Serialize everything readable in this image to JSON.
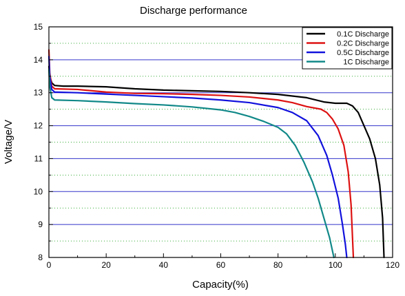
{
  "chart_data": {
    "type": "line",
    "title": "Discharge performance",
    "xlabel": "Capacity(%)",
    "ylabel": "Voltage/V",
    "xlim": [
      0,
      120
    ],
    "ylim": [
      8,
      15
    ],
    "x_ticks": [
      0,
      20,
      40,
      60,
      80,
      100,
      120
    ],
    "y_ticks": [
      8,
      9,
      10,
      11,
      12,
      13,
      14,
      15
    ],
    "grid": {
      "major_y": true,
      "minor_y": true,
      "major_color": "#3333cc",
      "minor_color": "#33aa33"
    },
    "legend_position": "top-right",
    "series": [
      {
        "name": "0.1C Discharge",
        "color": "#000000",
        "points": [
          [
            0,
            13.8
          ],
          [
            0.3,
            13.5
          ],
          [
            1,
            13.3
          ],
          [
            2,
            13.22
          ],
          [
            5,
            13.2
          ],
          [
            10,
            13.2
          ],
          [
            20,
            13.18
          ],
          [
            30,
            13.12
          ],
          [
            40,
            13.08
          ],
          [
            50,
            13.06
          ],
          [
            60,
            13.04
          ],
          [
            70,
            13.0
          ],
          [
            80,
            12.95
          ],
          [
            90,
            12.85
          ],
          [
            96,
            12.72
          ],
          [
            100,
            12.68
          ],
          [
            104,
            12.68
          ],
          [
            106,
            12.6
          ],
          [
            108,
            12.4
          ],
          [
            110,
            12.0
          ],
          [
            112,
            11.6
          ],
          [
            114,
            11.0
          ],
          [
            115.5,
            10.2
          ],
          [
            116.5,
            9.2
          ],
          [
            117,
            8.0
          ]
        ]
      },
      {
        "name": "0.2C Discharge",
        "color": "#dd1111",
        "points": [
          [
            0,
            14.3
          ],
          [
            0.3,
            13.6
          ],
          [
            1,
            13.2
          ],
          [
            2,
            13.12
          ],
          [
            10,
            13.1
          ],
          [
            20,
            13.02
          ],
          [
            30,
            12.98
          ],
          [
            40,
            12.97
          ],
          [
            50,
            12.95
          ],
          [
            60,
            12.92
          ],
          [
            70,
            12.87
          ],
          [
            80,
            12.78
          ],
          [
            85,
            12.7
          ],
          [
            90,
            12.58
          ],
          [
            95,
            12.5
          ],
          [
            97,
            12.4
          ],
          [
            99,
            12.2
          ],
          [
            101,
            11.9
          ],
          [
            103,
            11.4
          ],
          [
            104.5,
            10.6
          ],
          [
            105.5,
            9.6
          ],
          [
            106,
            8.6
          ],
          [
            106.3,
            8.0
          ]
        ]
      },
      {
        "name": "0.5C Discharge",
        "color": "#1111dd",
        "points": [
          [
            0,
            14.1
          ],
          [
            0.3,
            13.5
          ],
          [
            1,
            13.1
          ],
          [
            2,
            13.02
          ],
          [
            10,
            13.0
          ],
          [
            20,
            12.96
          ],
          [
            30,
            12.92
          ],
          [
            40,
            12.88
          ],
          [
            50,
            12.84
          ],
          [
            60,
            12.78
          ],
          [
            70,
            12.7
          ],
          [
            80,
            12.55
          ],
          [
            85,
            12.4
          ],
          [
            90,
            12.15
          ],
          [
            94,
            11.7
          ],
          [
            97,
            11.1
          ],
          [
            99,
            10.5
          ],
          [
            101,
            9.8
          ],
          [
            102.5,
            9.0
          ],
          [
            103.5,
            8.4
          ],
          [
            104,
            8.0
          ]
        ]
      },
      {
        "name": "1C Discharge",
        "color": "#118888",
        "points": [
          [
            0,
            13.7
          ],
          [
            0.3,
            13.2
          ],
          [
            1,
            12.85
          ],
          [
            2,
            12.78
          ],
          [
            10,
            12.76
          ],
          [
            20,
            12.72
          ],
          [
            30,
            12.67
          ],
          [
            40,
            12.63
          ],
          [
            50,
            12.57
          ],
          [
            60,
            12.48
          ],
          [
            65,
            12.4
          ],
          [
            70,
            12.28
          ],
          [
            75,
            12.13
          ],
          [
            80,
            11.95
          ],
          [
            83,
            11.75
          ],
          [
            86,
            11.4
          ],
          [
            89,
            10.9
          ],
          [
            92,
            10.3
          ],
          [
            94,
            9.8
          ],
          [
            96,
            9.2
          ],
          [
            98,
            8.6
          ],
          [
            99.5,
            8.0
          ]
        ]
      }
    ]
  }
}
